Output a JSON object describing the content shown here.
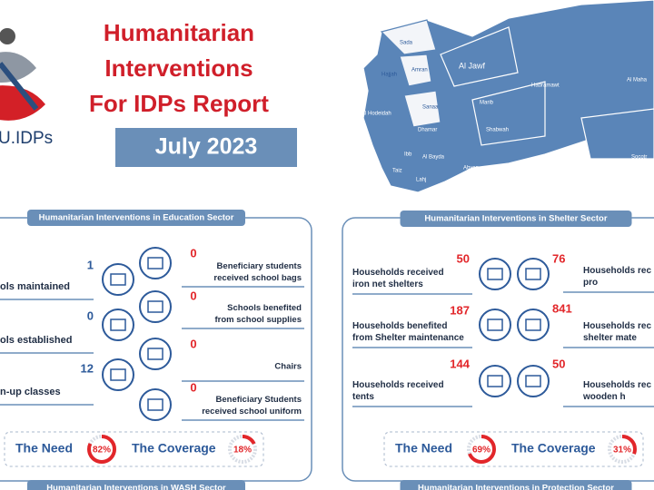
{
  "header": {
    "logo_text": "U.IDPs",
    "title_lines": [
      "Humanitarian",
      "Interventions",
      "For IDPs Report"
    ],
    "date": "July 2023"
  },
  "map": {
    "regions": [
      "Sada",
      "Hajjah",
      "Amran",
      "Al Jawf",
      "Hadramawt",
      "Al Maha",
      "Al Hodeidah",
      "Sanaa",
      "Marib",
      "Dhamar",
      "Shabwah",
      "Ibb",
      "Al Bayda",
      "Taiz",
      "Abyan",
      "Lahj",
      "Socotr"
    ]
  },
  "education": {
    "title": "Humanitarian Interventions in Education Sector",
    "left": [
      {
        "value": 1,
        "label": [
          "ols maintained"
        ]
      },
      {
        "value": 0,
        "label": [
          "ols established"
        ]
      },
      {
        "value": 12,
        "label": [
          "n-up classes"
        ]
      }
    ],
    "right": [
      {
        "value": 0,
        "label": [
          "Beneficiary students",
          "received school bags"
        ]
      },
      {
        "value": 0,
        "label": [
          "Schools benefited",
          "from school supplies"
        ]
      },
      {
        "value": 0,
        "label": [
          "Chairs"
        ]
      },
      {
        "value": 0,
        "label": [
          "Beneficiary Students",
          "received school uniform"
        ]
      }
    ],
    "need": {
      "label": "The Need",
      "value": 82,
      "value_label": "82%"
    },
    "coverage": {
      "label": "The Coverage",
      "value": 18,
      "value_label": "18%"
    }
  },
  "shelter": {
    "title": "Humanitarian Interventions in Shelter Sector",
    "left": [
      {
        "value": 50,
        "label": [
          "Households received",
          "iron net shelters"
        ]
      },
      {
        "value": 187,
        "label": [
          "Households benefited",
          "from Shelter maintenance"
        ]
      },
      {
        "value": 144,
        "label": [
          "Households received",
          "tents"
        ]
      }
    ],
    "right": [
      {
        "value": 76,
        "label": [
          "Households rec",
          "pro"
        ]
      },
      {
        "value": 841,
        "label": [
          "Households rec",
          "shelter mate"
        ]
      },
      {
        "value": 50,
        "label": [
          "Households rec",
          "wooden h"
        ]
      }
    ],
    "need": {
      "label": "The Need",
      "value": 69,
      "value_label": "69%"
    },
    "coverage": {
      "label": "The Coverage",
      "value": 31,
      "value_label": "31%"
    }
  },
  "footer_sections": [
    "Humanitarian Interventions in WASH Sector",
    "Humanitarian Interventions in Protection Sector"
  ]
}
